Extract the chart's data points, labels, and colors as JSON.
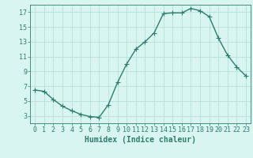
{
  "x": [
    0,
    1,
    2,
    3,
    4,
    5,
    6,
    7,
    8,
    9,
    10,
    11,
    12,
    13,
    14,
    15,
    16,
    17,
    18,
    19,
    20,
    21,
    22,
    23
  ],
  "y": [
    6.5,
    6.3,
    5.2,
    4.3,
    3.7,
    3.2,
    2.9,
    2.8,
    4.5,
    7.5,
    10.0,
    12.0,
    13.0,
    14.2,
    16.8,
    16.9,
    16.9,
    17.5,
    17.2,
    16.4,
    13.5,
    11.2,
    9.6,
    8.4
  ],
  "line_color": "#2e7d6e",
  "marker": "+",
  "marker_size": 4,
  "line_width": 1.0,
  "xlabel": "Humidex (Indice chaleur)",
  "xlim": [
    -0.5,
    23.5
  ],
  "ylim": [
    2,
    18
  ],
  "yticks": [
    3,
    5,
    7,
    9,
    11,
    13,
    15,
    17
  ],
  "xticks": [
    0,
    1,
    2,
    3,
    4,
    5,
    6,
    7,
    8,
    9,
    10,
    11,
    12,
    13,
    14,
    15,
    16,
    17,
    18,
    19,
    20,
    21,
    22,
    23
  ],
  "bg_color": "#d8f5f0",
  "grid_color": "#b0ddd5",
  "tick_color": "#2e7d6e",
  "label_color": "#2e7d6e",
  "xlabel_fontsize": 7,
  "tick_fontsize": 6
}
